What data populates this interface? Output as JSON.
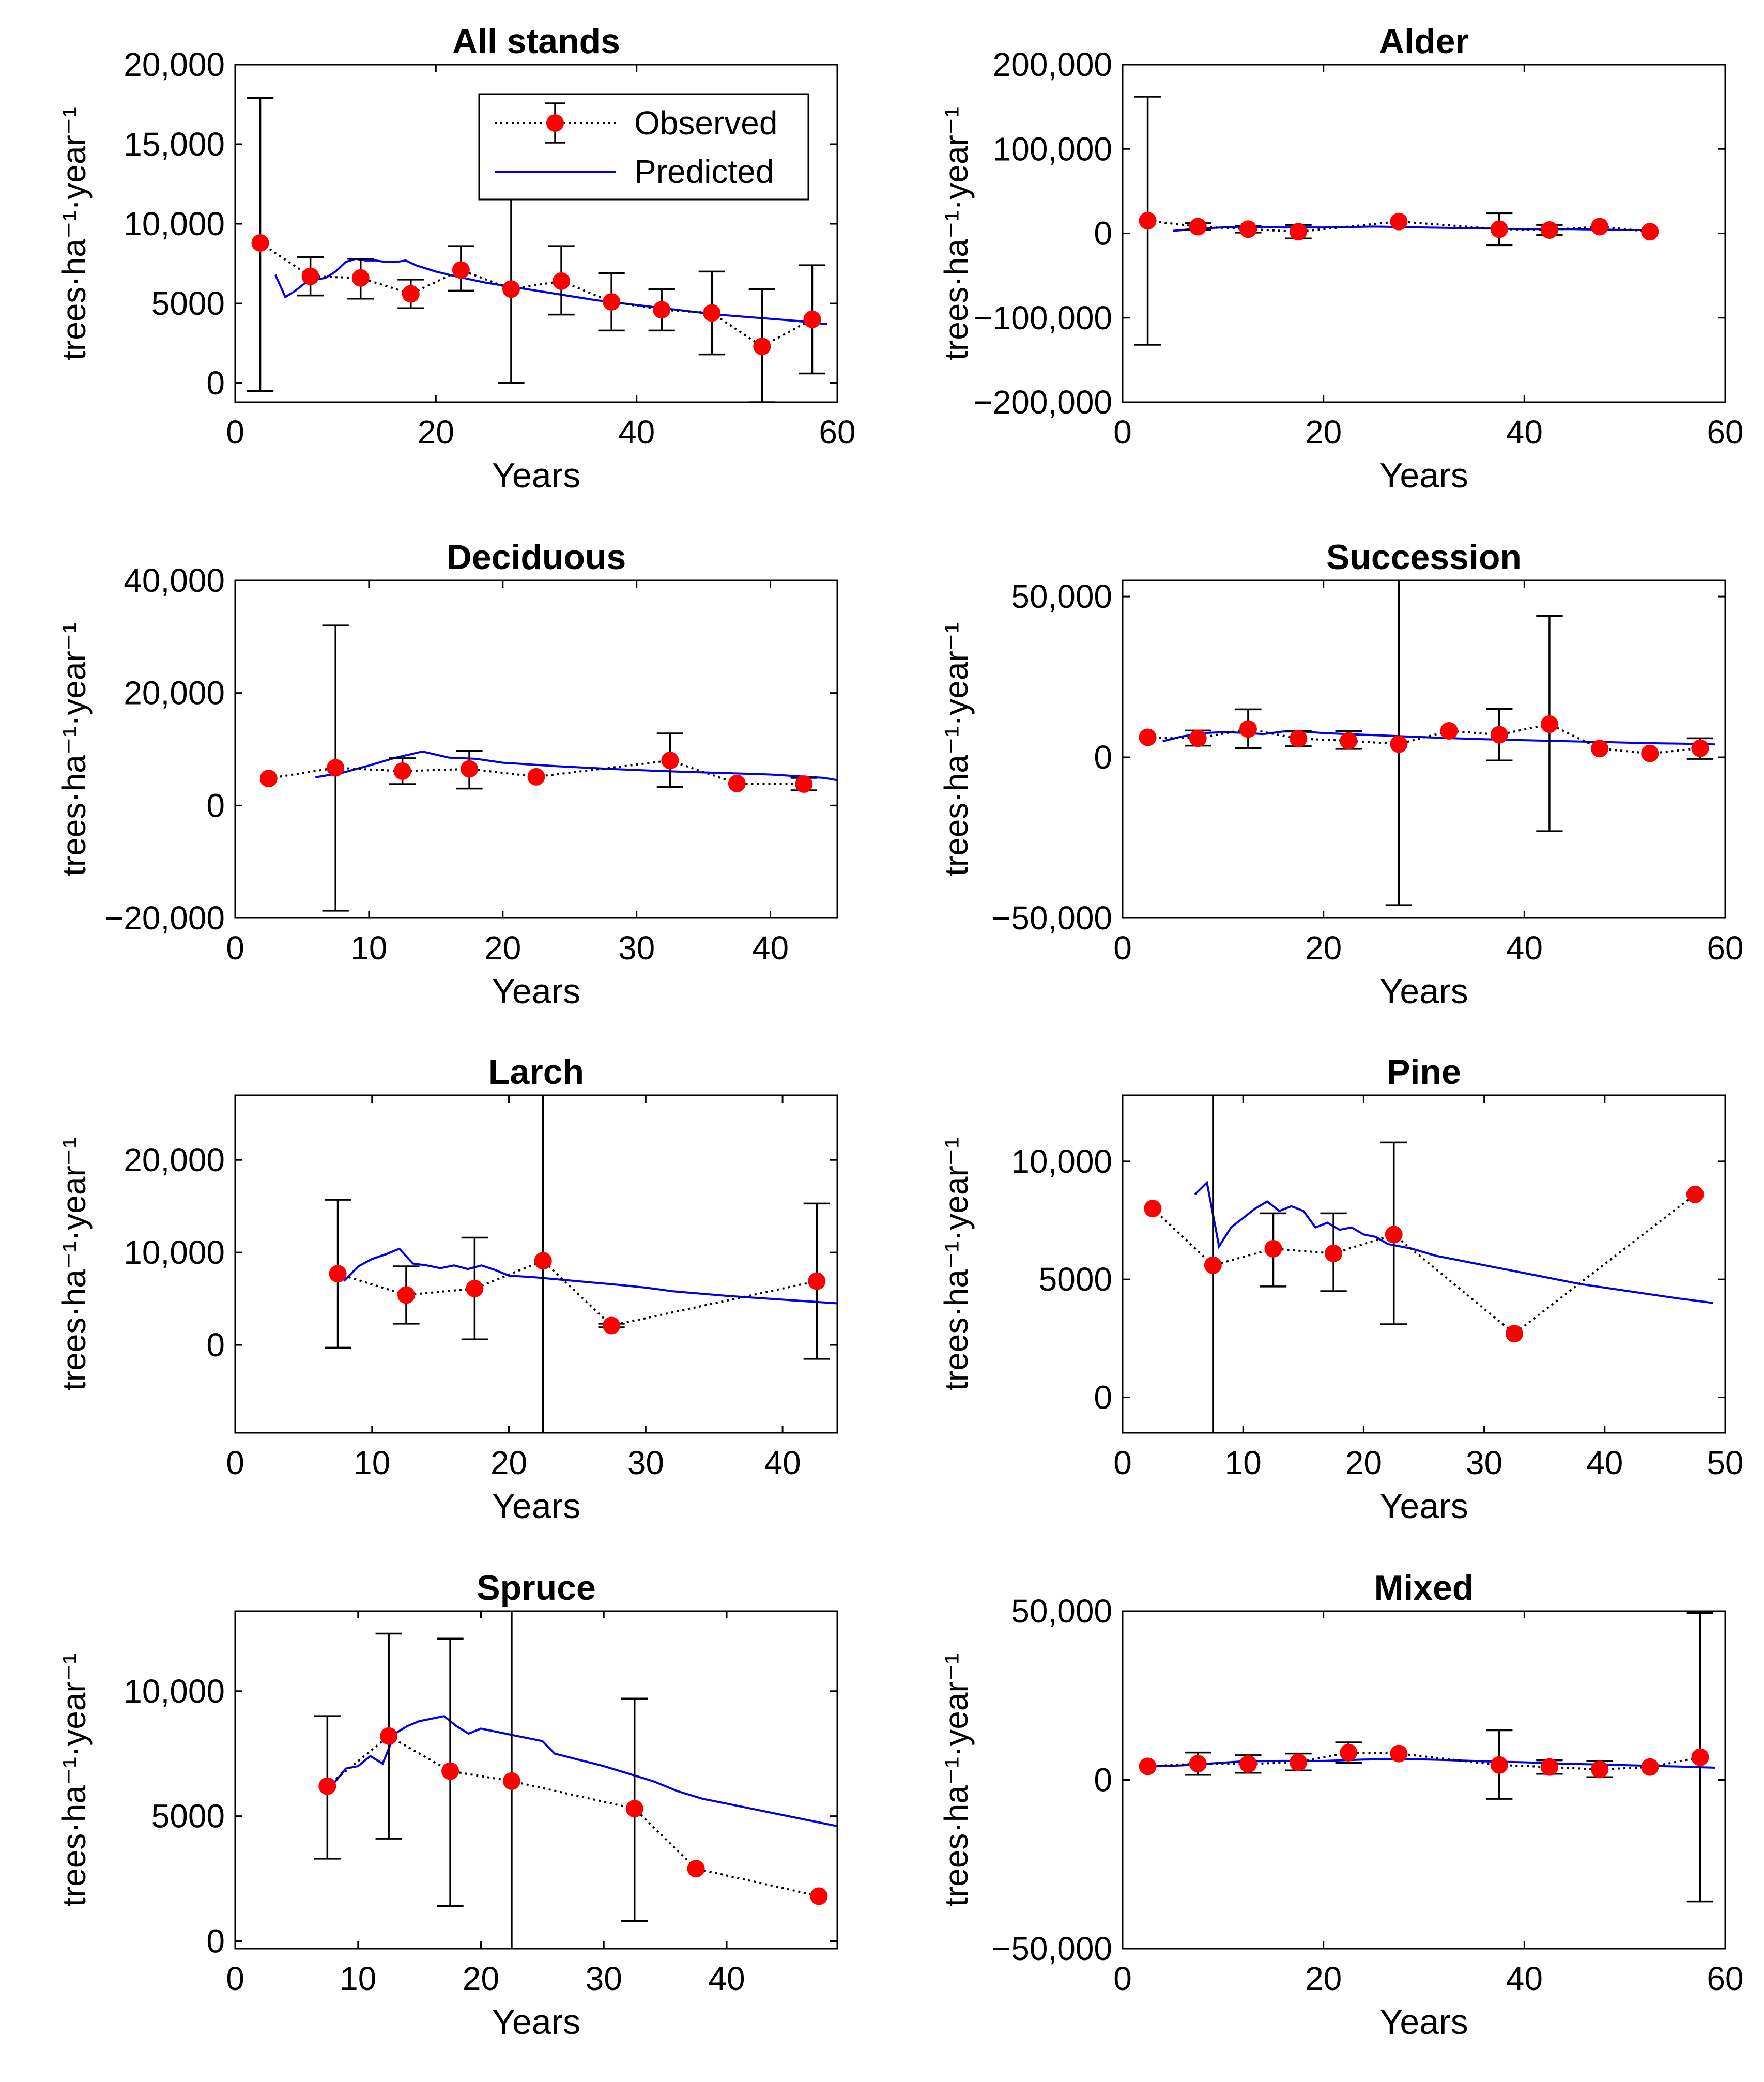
{
  "figure": {
    "legend": {
      "observed": "Observed",
      "predicted": "Predicted"
    },
    "colors": {
      "observed": "#ff0000",
      "predicted": "#0000ee",
      "errorbar": "#000000",
      "axis": "#000000"
    }
  },
  "chart_data": [
    {
      "type": "line",
      "title": "All stands",
      "xlabel": "Years",
      "ylabel": "trees·ha⁻¹·year⁻¹",
      "xlim": [
        0,
        60
      ],
      "ylim": [
        -1200,
        20000
      ],
      "xticks": [
        0,
        20,
        40,
        60
      ],
      "xtick_labels": [
        "0",
        "20",
        "40",
        "60"
      ],
      "yticks": [
        0,
        5000,
        10000,
        15000,
        20000
      ],
      "ytick_labels": [
        "0",
        "5000",
        "10,000",
        "15,000",
        "20,000"
      ],
      "legend_position": "top-right",
      "observed": [
        {
          "x": 2.5,
          "y": 8800,
          "lo": -500,
          "hi": 17900
        },
        {
          "x": 7.5,
          "y": 6700,
          "lo": 5500,
          "hi": 7900
        },
        {
          "x": 12.5,
          "y": 6600,
          "lo": 5300,
          "hi": 7800
        },
        {
          "x": 17.5,
          "y": 5600,
          "lo": 4700,
          "hi": 6500
        },
        {
          "x": 22.5,
          "y": 7100,
          "lo": 5800,
          "hi": 8600
        },
        {
          "x": 27.5,
          "y": 5900,
          "lo": 0,
          "hi": 11800
        },
        {
          "x": 32.5,
          "y": 6400,
          "lo": 4300,
          "hi": 8600
        },
        {
          "x": 37.5,
          "y": 5100,
          "lo": 3300,
          "hi": 6900
        },
        {
          "x": 42.5,
          "y": 4600,
          "lo": 3300,
          "hi": 5900
        },
        {
          "x": 47.5,
          "y": 4400,
          "lo": 1800,
          "hi": 7000
        },
        {
          "x": 52.5,
          "y": 2300,
          "lo": -1200,
          "hi": 5900
        },
        {
          "x": 57.5,
          "y": 4000,
          "lo": 600,
          "hi": 7400
        }
      ],
      "predicted": {
        "x": [
          4,
          5,
          6,
          7,
          8,
          9,
          10,
          11,
          12,
          13,
          14,
          15,
          16,
          17,
          18,
          19,
          20,
          22,
          25,
          28,
          32,
          36,
          40,
          44,
          48,
          52,
          56,
          59
        ],
        "y": [
          6800,
          5400,
          5800,
          6300,
          6500,
          6600,
          7000,
          7600,
          7800,
          7700,
          7700,
          7600,
          7600,
          7700,
          7400,
          7200,
          7000,
          6700,
          6300,
          6000,
          5600,
          5200,
          4900,
          4600,
          4300,
          4100,
          3900,
          3700
        ]
      }
    },
    {
      "type": "line",
      "title": "Alder",
      "xlabel": "Years",
      "ylabel": "trees·ha⁻¹·year⁻¹",
      "xlim": [
        0,
        60
      ],
      "ylim": [
        -200000,
        200000
      ],
      "xticks": [
        0,
        20,
        40,
        60
      ],
      "xtick_labels": [
        "0",
        "20",
        "40",
        "60"
      ],
      "yticks": [
        -200000,
        -100000,
        0,
        100000,
        200000
      ],
      "ytick_labels": [
        "−200,000",
        "−100,000",
        "0",
        "100,000",
        "200,000"
      ],
      "observed": [
        {
          "x": 2.5,
          "y": 15000,
          "lo": -132000,
          "hi": 162000
        },
        {
          "x": 7.5,
          "y": 8000,
          "lo": 4000,
          "hi": 12000
        },
        {
          "x": 12.5,
          "y": 5000,
          "lo": 1000,
          "hi": 9000
        },
        {
          "x": 17.5,
          "y": 2000,
          "lo": -6000,
          "hi": 10000
        },
        {
          "x": 27.5,
          "y": 14000,
          "lo": 14000,
          "hi": 14000
        },
        {
          "x": 37.5,
          "y": 5000,
          "lo": -14000,
          "hi": 24000
        },
        {
          "x": 42.5,
          "y": 4000,
          "lo": -2000,
          "hi": 10000
        },
        {
          "x": 47.5,
          "y": 8000,
          "lo": 8000,
          "hi": 8000
        },
        {
          "x": 52.5,
          "y": 2000,
          "lo": 2000,
          "hi": 2000
        }
      ],
      "predicted": {
        "x": [
          5,
          8,
          12,
          16,
          20,
          25,
          30,
          35,
          40,
          45,
          50,
          53
        ],
        "y": [
          3000,
          6000,
          8000,
          7000,
          7000,
          8000,
          7000,
          6000,
          5000,
          5000,
          4000,
          4000
        ]
      }
    },
    {
      "type": "line",
      "title": "Deciduous",
      "xlabel": "Years",
      "ylabel": "trees·ha⁻¹·year⁻¹",
      "xlim": [
        0,
        45
      ],
      "ylim": [
        -20000,
        40000
      ],
      "xticks": [
        0,
        10,
        20,
        30,
        40
      ],
      "xtick_labels": [
        "0",
        "10",
        "20",
        "30",
        "40"
      ],
      "yticks": [
        -20000,
        0,
        20000,
        40000
      ],
      "ytick_labels": [
        "−20,000",
        "0",
        "20,000",
        "40,000"
      ],
      "observed": [
        {
          "x": 2.5,
          "y": 4800,
          "lo": 4800,
          "hi": 4800
        },
        {
          "x": 7.5,
          "y": 6700,
          "lo": -18700,
          "hi": 32000
        },
        {
          "x": 12.5,
          "y": 6100,
          "lo": 3800,
          "hi": 8400
        },
        {
          "x": 17.5,
          "y": 6500,
          "lo": 3000,
          "hi": 9700
        },
        {
          "x": 22.5,
          "y": 5100,
          "lo": 5100,
          "hi": 5100
        },
        {
          "x": 32.5,
          "y": 8000,
          "lo": 3300,
          "hi": 12800
        },
        {
          "x": 37.5,
          "y": 3900,
          "lo": 3900,
          "hi": 3900
        },
        {
          "x": 42.5,
          "y": 3800,
          "lo": 2700,
          "hi": 4900
        }
      ],
      "predicted": {
        "x": [
          6,
          8,
          10,
          12,
          14,
          16,
          18,
          20,
          24,
          28,
          32,
          36,
          40,
          44,
          45
        ],
        "y": [
          5000,
          5800,
          7100,
          8500,
          9600,
          8500,
          8300,
          7600,
          7000,
          6500,
          6100,
          5800,
          5500,
          4900,
          4500
        ]
      }
    },
    {
      "type": "line",
      "title": "Succession",
      "xlabel": "Years",
      "ylabel": "trees·ha⁻¹·year⁻¹",
      "xlim": [
        0,
        60
      ],
      "ylim": [
        -50000,
        55000
      ],
      "xticks": [
        0,
        20,
        40,
        60
      ],
      "xtick_labels": [
        "0",
        "20",
        "40",
        "60"
      ],
      "yticks": [
        -50000,
        0,
        50000
      ],
      "ytick_labels": [
        "−50,000",
        "0",
        "50,000"
      ],
      "observed": [
        {
          "x": 2.5,
          "y": 6200,
          "lo": 6200,
          "hi": 6200
        },
        {
          "x": 7.5,
          "y": 5900,
          "lo": 3600,
          "hi": 8300
        },
        {
          "x": 12.5,
          "y": 8800,
          "lo": 2800,
          "hi": 14900
        },
        {
          "x": 17.5,
          "y": 5800,
          "lo": 3400,
          "hi": 8100
        },
        {
          "x": 22.5,
          "y": 5100,
          "lo": 2600,
          "hi": 8100
        },
        {
          "x": 27.5,
          "y": 4100,
          "lo": -46000,
          "hi": 55000
        },
        {
          "x": 32.5,
          "y": 8200,
          "lo": 8200,
          "hi": 8200
        },
        {
          "x": 37.5,
          "y": 7000,
          "lo": -1000,
          "hi": 15000
        },
        {
          "x": 42.5,
          "y": 10300,
          "lo": -23000,
          "hi": 44000
        },
        {
          "x": 47.5,
          "y": 2700,
          "lo": 2700,
          "hi": 2700
        },
        {
          "x": 52.5,
          "y": 1200,
          "lo": 1200,
          "hi": 1200
        },
        {
          "x": 57.5,
          "y": 2800,
          "lo": -500,
          "hi": 5900
        }
      ],
      "predicted": {
        "x": [
          4,
          6,
          8,
          10,
          12,
          14,
          16,
          18,
          20,
          24,
          28,
          32,
          36,
          40,
          44,
          48,
          52,
          56,
          59
        ],
        "y": [
          5000,
          6500,
          7500,
          7800,
          7600,
          7200,
          8000,
          8000,
          7500,
          7000,
          6500,
          6000,
          5600,
          5300,
          5000,
          4700,
          4400,
          4200,
          4000
        ]
      }
    },
    {
      "type": "line",
      "title": "Larch",
      "xlabel": "Years",
      "ylabel": "trees·ha⁻¹·year⁻¹",
      "xlim": [
        0,
        44
      ],
      "ylim": [
        -9500,
        27000
      ],
      "xticks": [
        0,
        10,
        20,
        30,
        40
      ],
      "xtick_labels": [
        "0",
        "10",
        "20",
        "30",
        "40"
      ],
      "yticks": [
        0,
        10000,
        20000
      ],
      "ytick_labels": [
        "0",
        "10,000",
        "20,000"
      ],
      "observed": [
        {
          "x": 7.5,
          "y": 7700,
          "lo": -300,
          "hi": 15700
        },
        {
          "x": 12.5,
          "y": 5400,
          "lo": 2300,
          "hi": 8500
        },
        {
          "x": 17.5,
          "y": 6100,
          "lo": 600,
          "hi": 11600
        },
        {
          "x": 22.5,
          "y": 9100,
          "lo": -9500,
          "hi": 27000
        },
        {
          "x": 27.5,
          "y": 2100,
          "lo": 1900,
          "hi": 2300
        },
        {
          "x": 42.5,
          "y": 6900,
          "lo": -1500,
          "hi": 15300
        }
      ],
      "predicted": {
        "x": [
          7.5,
          8,
          9,
          10,
          11,
          12,
          13,
          14,
          15,
          16,
          17,
          18,
          19,
          20,
          22,
          25,
          28,
          30,
          32,
          36,
          40,
          44
        ],
        "y": [
          7700,
          7000,
          8500,
          9300,
          9800,
          10400,
          8800,
          8600,
          8300,
          8600,
          8200,
          8600,
          8100,
          7500,
          7300,
          6900,
          6500,
          6200,
          5800,
          5300,
          4900,
          4500
        ]
      }
    },
    {
      "type": "line",
      "title": "Pine",
      "xlabel": "Years",
      "ylabel": "trees·ha⁻¹·year⁻¹",
      "xlim": [
        0,
        50
      ],
      "ylim": [
        -1500,
        12800
      ],
      "xticks": [
        0,
        10,
        20,
        30,
        40,
        50
      ],
      "xtick_labels": [
        "0",
        "10",
        "20",
        "30",
        "40",
        "50"
      ],
      "yticks": [
        0,
        5000,
        10000
      ],
      "ytick_labels": [
        "0",
        "5000",
        "10,000"
      ],
      "observed": [
        {
          "x": 2.5,
          "y": 8000,
          "lo": 8000,
          "hi": 8000
        },
        {
          "x": 7.5,
          "y": 5600,
          "lo": -1500,
          "hi": 12800
        },
        {
          "x": 12.5,
          "y": 6300,
          "lo": 4700,
          "hi": 7800
        },
        {
          "x": 17.5,
          "y": 6100,
          "lo": 4500,
          "hi": 7800
        },
        {
          "x": 22.5,
          "y": 6900,
          "lo": 3100,
          "hi": 10800
        },
        {
          "x": 32.5,
          "y": 2700,
          "lo": 2700,
          "hi": 2700
        },
        {
          "x": 47.5,
          "y": 8600,
          "lo": 8600,
          "hi": 8600
        }
      ],
      "predicted": {
        "x": [
          6,
          7,
          8,
          9,
          10,
          11,
          12,
          13,
          14,
          15,
          16,
          17,
          18,
          19,
          20,
          21,
          22,
          24,
          26,
          30,
          34,
          38,
          42,
          46,
          49
        ],
        "y": [
          8600,
          9100,
          6400,
          7200,
          7600,
          8000,
          8300,
          7900,
          8100,
          7900,
          7200,
          7400,
          7100,
          7200,
          6900,
          6800,
          6500,
          6300,
          6000,
          5600,
          5200,
          4800,
          4500,
          4200,
          4000
        ]
      }
    },
    {
      "type": "line",
      "title": "Spruce",
      "xlabel": "Years",
      "ylabel": "trees·ha⁻¹·year⁻¹",
      "xlim": [
        0,
        49
      ],
      "ylim": [
        -300,
        13200
      ],
      "xticks": [
        0,
        10,
        20,
        30,
        40
      ],
      "xtick_labels": [
        "0",
        "10",
        "20",
        "30",
        "40"
      ],
      "yticks": [
        0,
        5000,
        10000
      ],
      "ytick_labels": [
        "0",
        "5000",
        "10,000"
      ],
      "observed": [
        {
          "x": 7.5,
          "y": 6200,
          "lo": 3300,
          "hi": 9000
        },
        {
          "x": 12.5,
          "y": 8200,
          "lo": 4100,
          "hi": 12300
        },
        {
          "x": 17.5,
          "y": 6800,
          "lo": 1400,
          "hi": 12100
        },
        {
          "x": 22.5,
          "y": 6400,
          "lo": -300,
          "hi": 13200
        },
        {
          "x": 32.5,
          "y": 5300,
          "lo": 800,
          "hi": 9700
        },
        {
          "x": 37.5,
          "y": 2900,
          "lo": 2900,
          "hi": 2900
        },
        {
          "x": 47.5,
          "y": 1800,
          "lo": 1800,
          "hi": 1800
        }
      ],
      "predicted": {
        "x": [
          8,
          9,
          10,
          11,
          12,
          13,
          14,
          15,
          16,
          17,
          18,
          19,
          20,
          21,
          22,
          23,
          24,
          25,
          26,
          30,
          34,
          36,
          38,
          42,
          46,
          49
        ],
        "y": [
          6300,
          6900,
          7000,
          7400,
          7100,
          8300,
          8600,
          8800,
          8900,
          9000,
          8600,
          8300,
          8500,
          8400,
          8300,
          8200,
          8100,
          8000,
          7500,
          7000,
          6400,
          6000,
          5700,
          5300,
          4900,
          4600
        ]
      }
    },
    {
      "type": "line",
      "title": "Mixed",
      "xlabel": "Years",
      "ylabel": "trees·ha⁻¹·year⁻¹",
      "xlim": [
        0,
        60
      ],
      "ylim": [
        -50000,
        50000
      ],
      "xticks": [
        0,
        20,
        40,
        60
      ],
      "xtick_labels": [
        "0",
        "20",
        "40",
        "60"
      ],
      "yticks": [
        -50000,
        0,
        50000
      ],
      "ytick_labels": [
        "−50,000",
        "0",
        "50,000"
      ],
      "observed": [
        {
          "x": 2.5,
          "y": 4000,
          "lo": 4000,
          "hi": 4000
        },
        {
          "x": 7.5,
          "y": 4800,
          "lo": 1500,
          "hi": 8100
        },
        {
          "x": 12.5,
          "y": 4700,
          "lo": 2100,
          "hi": 7300
        },
        {
          "x": 17.5,
          "y": 5200,
          "lo": 2800,
          "hi": 7800
        },
        {
          "x": 22.5,
          "y": 8100,
          "lo": 5100,
          "hi": 11100
        },
        {
          "x": 27.5,
          "y": 7800,
          "lo": 7800,
          "hi": 7800
        },
        {
          "x": 37.5,
          "y": 4400,
          "lo": -5600,
          "hi": 14700
        },
        {
          "x": 42.5,
          "y": 3800,
          "lo": 1800,
          "hi": 5800
        },
        {
          "x": 47.5,
          "y": 3100,
          "lo": 800,
          "hi": 5600
        },
        {
          "x": 52.5,
          "y": 3800,
          "lo": 3800,
          "hi": 3800
        },
        {
          "x": 57.5,
          "y": 6700,
          "lo": -36000,
          "hi": 49500
        }
      ],
      "predicted": {
        "x": [
          3,
          6,
          9,
          12,
          16,
          20,
          24,
          28,
          32,
          36,
          40,
          44,
          48,
          52,
          56,
          59
        ],
        "y": [
          4000,
          4300,
          4900,
          5500,
          5600,
          5600,
          6000,
          6200,
          5900,
          5500,
          5200,
          4800,
          4500,
          4200,
          3900,
          3600
        ]
      }
    }
  ]
}
